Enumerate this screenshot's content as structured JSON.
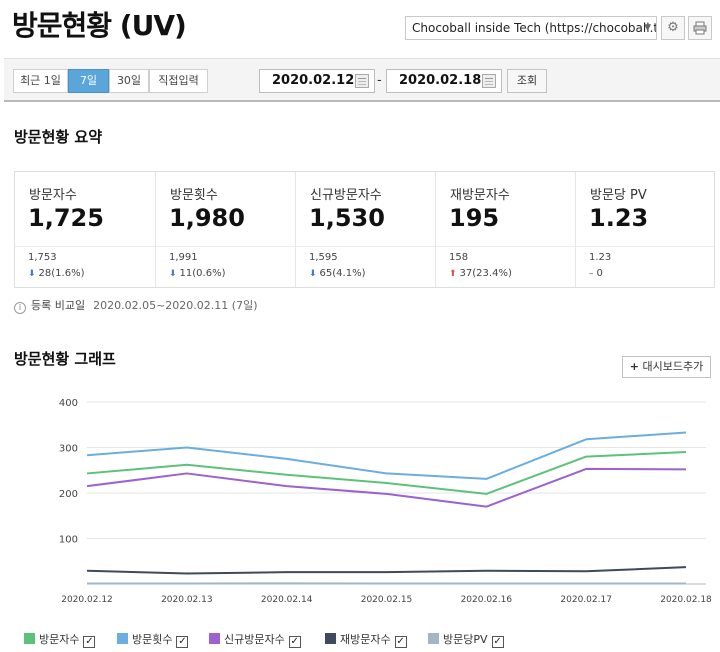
{
  "header": {
    "title": "방문현황 (UV)",
    "site_select": "Chocoball inside Tech (https://chocoball.t…",
    "settings_icon": "gear-icon",
    "print_icon": "printer-icon"
  },
  "period": {
    "buttons": [
      {
        "label": "최근 1일"
      },
      {
        "label": "7일"
      },
      {
        "label": "30일"
      },
      {
        "label": "직접입력"
      }
    ],
    "start_date": "2020.02.12",
    "separator": "-",
    "end_date": "2020.02.18",
    "search_label": "조회"
  },
  "summary": {
    "title": "방문현황 요약",
    "cards": [
      {
        "label": "방문자수",
        "value": "1,725",
        "prev": "1,753",
        "delta": "28(1.6%)",
        "trend": "down"
      },
      {
        "label": "방문횟수",
        "value": "1,980",
        "prev": "1,991",
        "delta": "11(0.6%)",
        "trend": "down"
      },
      {
        "label": "신규방문자수",
        "value": "1,530",
        "prev": "1,595",
        "delta": "65(4.1%)",
        "trend": "down"
      },
      {
        "label": "재방문자수",
        "value": "195",
        "prev": "158",
        "delta": "37(23.4%)",
        "trend": "up"
      },
      {
        "label": "방문당 PV",
        "value": "1.23",
        "prev": "1.23",
        "delta": "0",
        "trend": "flat"
      }
    ],
    "note_label": "등록 비교일",
    "note_range": "2020.02.05~2020.02.11 (7일)"
  },
  "graph": {
    "title": "방문현황 그래프",
    "dashboard_button": "대시보드추가"
  },
  "chart_data": {
    "type": "line",
    "x": [
      "2020.02.12",
      "2020.02.13",
      "2020.02.14",
      "2020.02.15",
      "2020.02.16",
      "2020.02.17",
      "2020.02.18"
    ],
    "ylim": [
      0,
      400
    ],
    "yticks": [
      100,
      200,
      300,
      400
    ],
    "grid": true,
    "legend_position": "bottom",
    "series": [
      {
        "name": "방문자수",
        "color": "#5cc27a",
        "values": [
          243,
          262,
          240,
          222,
          198,
          280,
          290
        ]
      },
      {
        "name": "방문횟수",
        "color": "#6aaee0",
        "values": [
          283,
          300,
          275,
          243,
          231,
          318,
          333
        ]
      },
      {
        "name": "신규방문자수",
        "color": "#9b62d0",
        "values": [
          215,
          243,
          215,
          198,
          170,
          253,
          252
        ]
      },
      {
        "name": "재방문자수",
        "color": "#3f4a5e",
        "values": [
          29,
          23,
          26,
          26,
          29,
          28,
          37
        ]
      },
      {
        "name": "방문당PV",
        "color": "#a3b6c9",
        "values": [
          1.2,
          1.2,
          1.3,
          1.2,
          1.2,
          1.2,
          1.2
        ]
      }
    ]
  }
}
